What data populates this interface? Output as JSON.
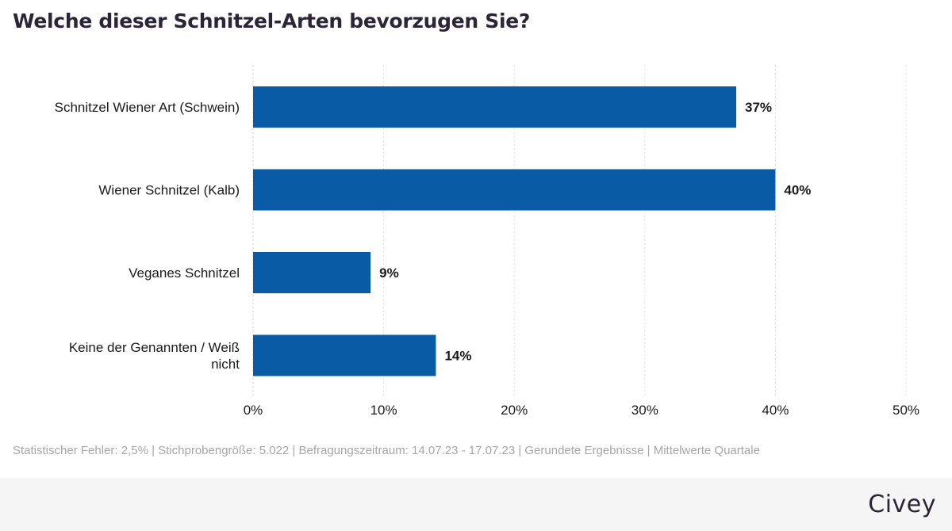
{
  "title": "Welche dieser Schnitzel-Arten bevorzugen Sie?",
  "footnote": "Statistischer Fehler: 2,5% | Stichprobengröße: 5.022 | Befragungszeitraum: 14.07.23 - 17.07.23 | Gerundete Ergebnisse | Mittelwerte Quartale",
  "brand": "Civey",
  "colors": {
    "bar": "#0a5ba6",
    "grid": "#e2e2e2",
    "text": "#1a1a1a",
    "title": "#2c2437"
  },
  "chart_data": {
    "type": "bar",
    "orientation": "horizontal",
    "categories": [
      [
        "Schnitzel Wiener Art (Schwein)"
      ],
      [
        "Wiener Schnitzel (Kalb)"
      ],
      [
        "Veganes Schnitzel"
      ],
      [
        "Keine der Genannten / Weiß",
        "nicht"
      ]
    ],
    "values": [
      37,
      40,
      9,
      14
    ],
    "value_labels": [
      "37%",
      "40%",
      "9%",
      "14%"
    ],
    "xlim": [
      0,
      50
    ],
    "ticks": [
      0,
      10,
      20,
      30,
      40,
      50
    ],
    "tick_labels": [
      "0%",
      "10%",
      "20%",
      "30%",
      "40%",
      "50%"
    ],
    "grid": true
  }
}
